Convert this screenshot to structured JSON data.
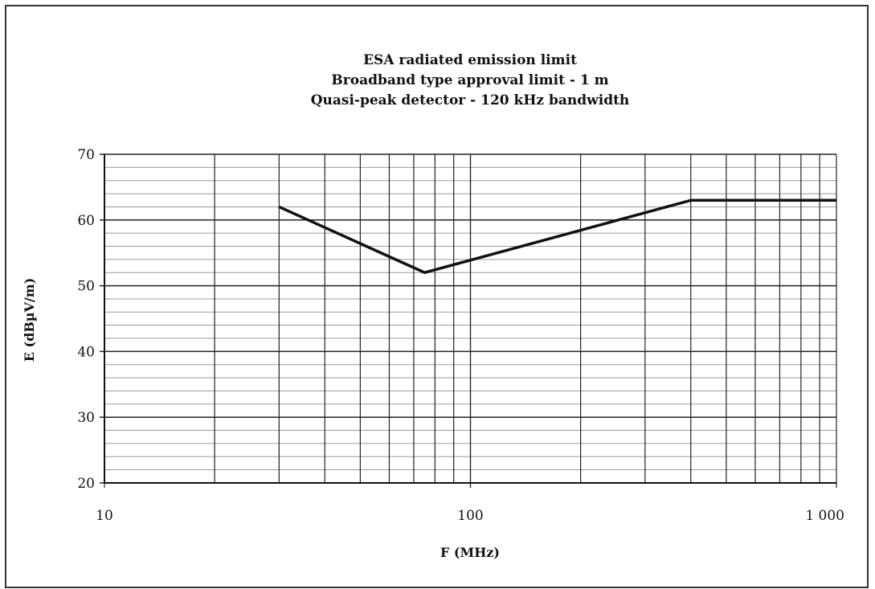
{
  "chart_data": {
    "type": "line",
    "title_lines": [
      "ESA radiated emission limit",
      "Broadband type approval limit - 1 m",
      "Quasi-peak detector - 120 kHz bandwidth"
    ],
    "xlabel": "F (MHz)",
    "ylabel": "E (dBµV/m)",
    "x_scale": "log",
    "xlim": [
      10,
      1000
    ],
    "ylim": [
      20,
      70
    ],
    "x_tick_labels": [
      {
        "value": 10,
        "label": "10"
      },
      {
        "value": 100,
        "label": "100"
      },
      {
        "value": 1000,
        "label": "1 000"
      }
    ],
    "y_ticks": [
      20,
      30,
      40,
      50,
      60,
      70
    ],
    "grid": true,
    "series": [
      {
        "x": [
          30,
          75,
          400,
          1000
        ],
        "y": [
          62,
          52,
          63,
          63
        ]
      }
    ]
  }
}
